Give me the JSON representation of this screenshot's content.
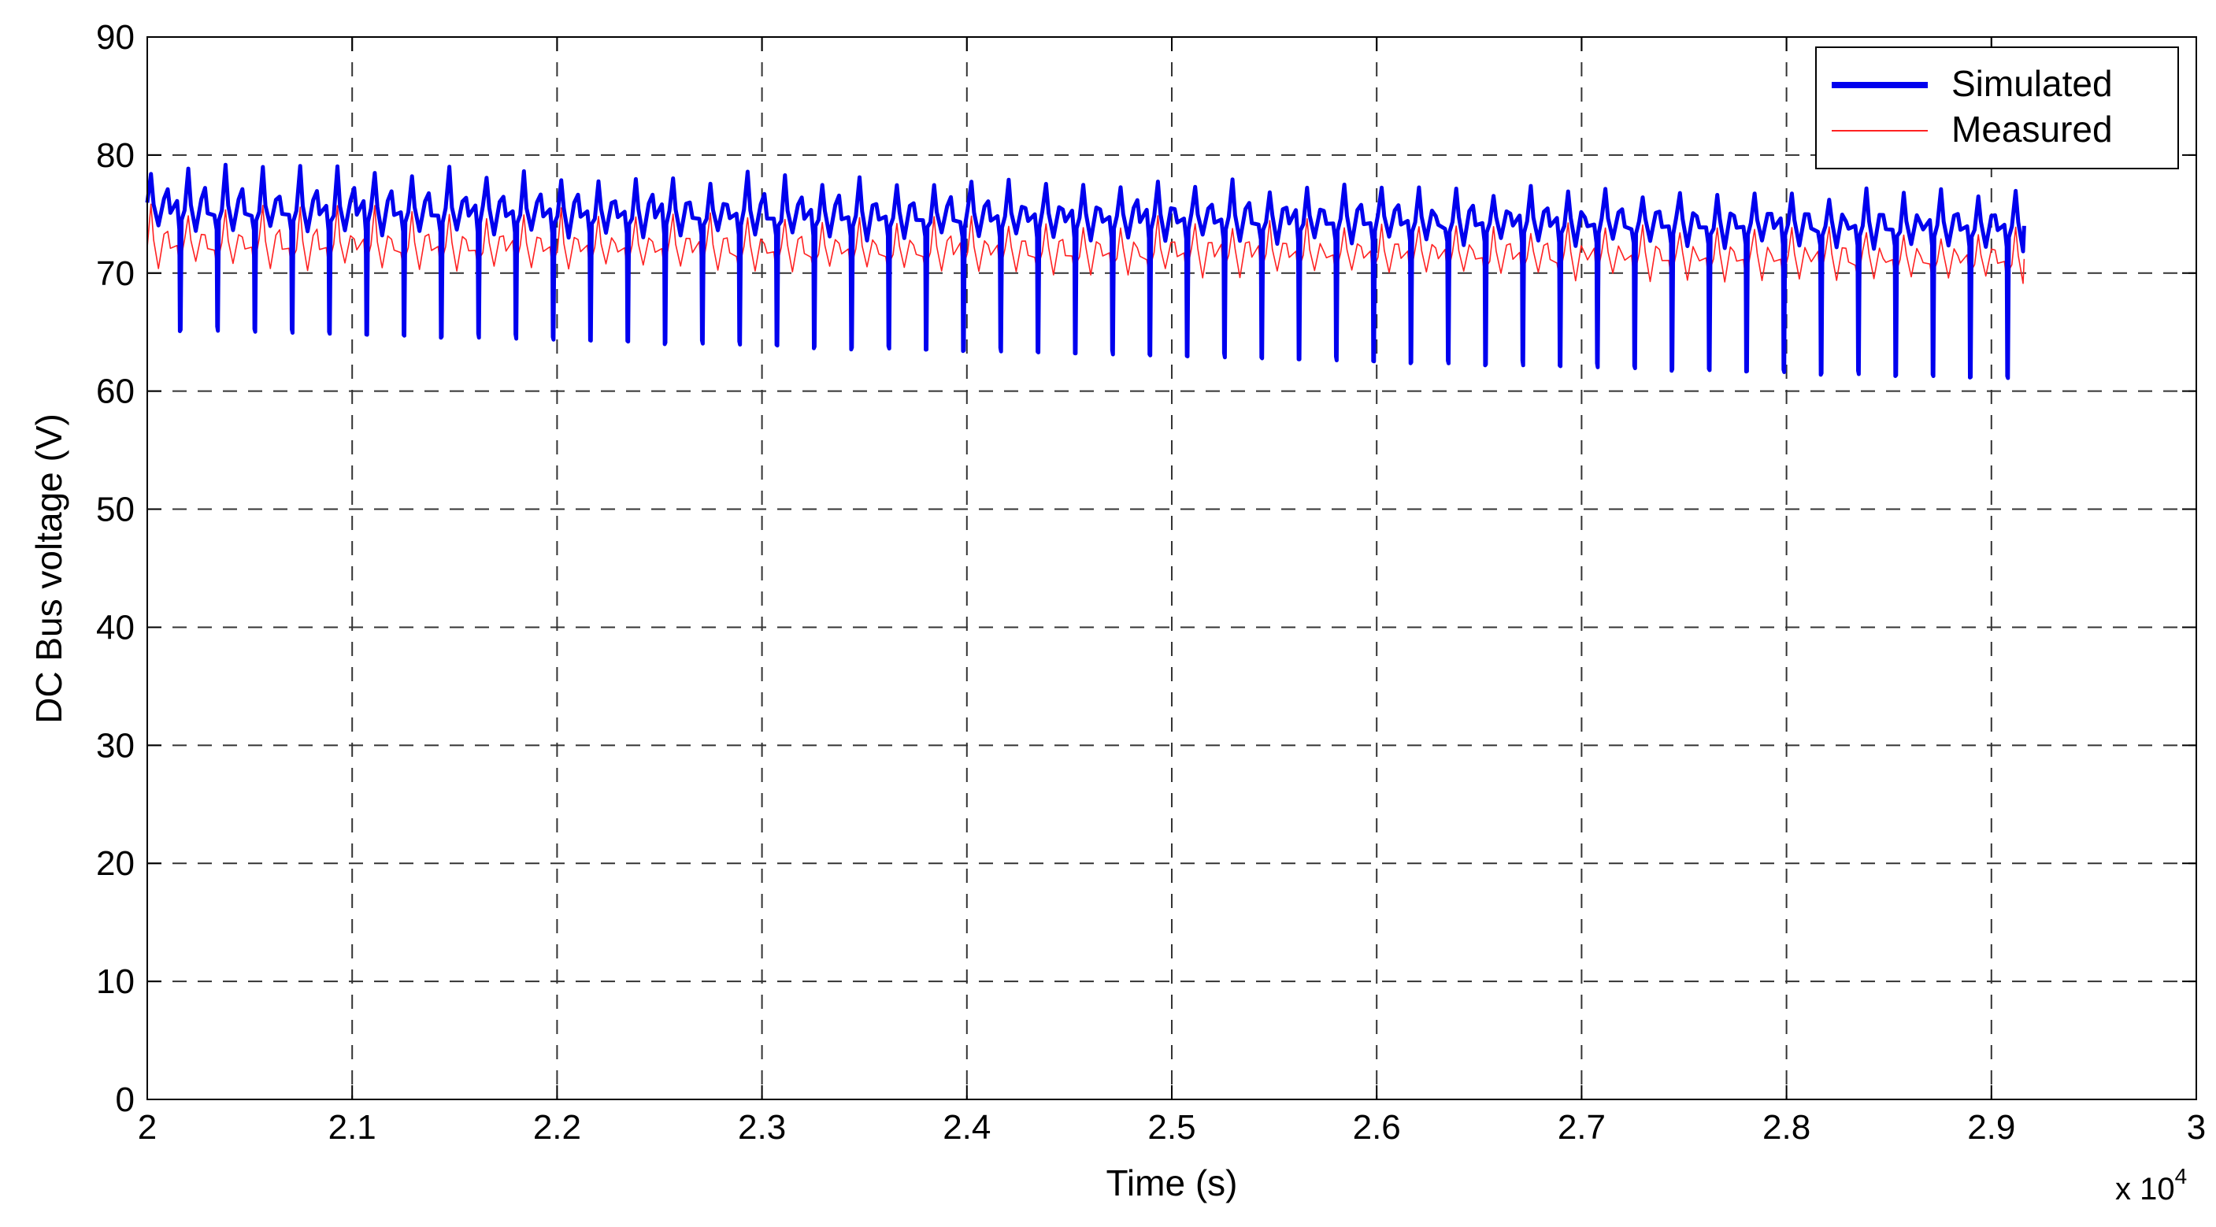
{
  "chart_data": {
    "type": "line",
    "title": "",
    "xlabel": "Time (s)",
    "ylabel": "DC Bus voltage (V)",
    "x_multiplier_label": "x 10",
    "x_multiplier_exponent": "4",
    "xlim": [
      2.0,
      3.0
    ],
    "ylim": [
      0,
      90
    ],
    "x_tick_values": [
      2.0,
      2.1,
      2.2,
      2.3,
      2.4,
      2.5,
      2.6,
      2.7,
      2.8,
      2.9,
      3.0
    ],
    "x_tick_labels": [
      "2",
      "2.1",
      "2.2",
      "2.3",
      "2.4",
      "2.5",
      "2.6",
      "2.7",
      "2.8",
      "2.9",
      "3"
    ],
    "y_tick_values": [
      0,
      10,
      20,
      30,
      40,
      50,
      60,
      70,
      80,
      90
    ],
    "y_tick_labels": [
      "0",
      "10",
      "20",
      "30",
      "40",
      "50",
      "60",
      "70",
      "80",
      "90"
    ],
    "grid": true,
    "grid_style": "dashed",
    "legend_position": "top-right",
    "series": [
      {
        "name": "Simulated",
        "color": "#0000ee",
        "signal": {
          "x_start": 2.0,
          "x_end": 2.916,
          "dip_period": 0.0182,
          "baseline_start": 75.5,
          "baseline_end": 74.0,
          "peak_start": 79.5,
          "peak_end": 77.0,
          "dip_start": 65.0,
          "dip_end": 60.8
        }
      },
      {
        "name": "Measured",
        "color": "#ff2222",
        "signal": {
          "x_start": 2.0,
          "x_end": 2.916,
          "dip_period": 0.0182,
          "baseline_start": 72.5,
          "baseline_end": 71.2,
          "peak_start": 76.0,
          "peak_end": 74.0,
          "dip_start": 66.0,
          "dip_end": 62.0
        }
      }
    ]
  }
}
